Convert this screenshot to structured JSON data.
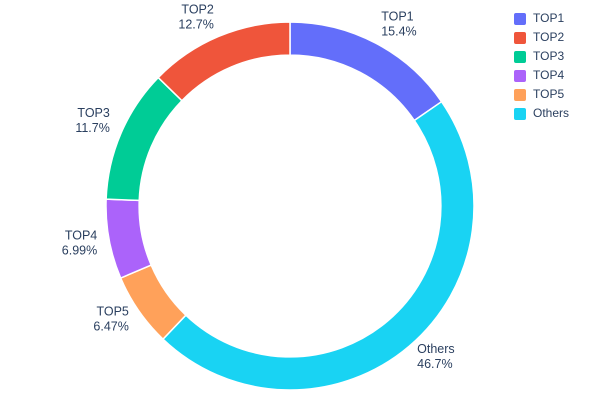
{
  "chart_data": {
    "type": "pie",
    "hole": 0.82,
    "title": "",
    "legend_position": "right",
    "background_color": "#ffffff",
    "label_color": "#2a3f5f",
    "series": [
      {
        "label": "TOP1",
        "value": 15.4,
        "pct_label": "15.4%",
        "color": "#636EFA"
      },
      {
        "label": "TOP2",
        "value": 12.7,
        "pct_label": "12.7%",
        "color": "#EF553B"
      },
      {
        "label": "TOP3",
        "value": 11.7,
        "pct_label": "11.7%",
        "color": "#00CC96"
      },
      {
        "label": "TOP4",
        "value": 6.99,
        "pct_label": "6.99%",
        "color": "#AB63FA"
      },
      {
        "label": "TOP5",
        "value": 6.47,
        "pct_label": "6.47%",
        "color": "#FFA15A"
      },
      {
        "label": "Others",
        "value": 46.7,
        "pct_label": "46.7%",
        "color": "#19D3F3"
      }
    ],
    "clockwise_order_from_top": [
      "TOP1",
      "Others",
      "TOP5",
      "TOP4",
      "TOP3",
      "TOP2"
    ],
    "legend_order": [
      "TOP1",
      "TOP2",
      "TOP3",
      "TOP4",
      "TOP5",
      "Others"
    ]
  }
}
